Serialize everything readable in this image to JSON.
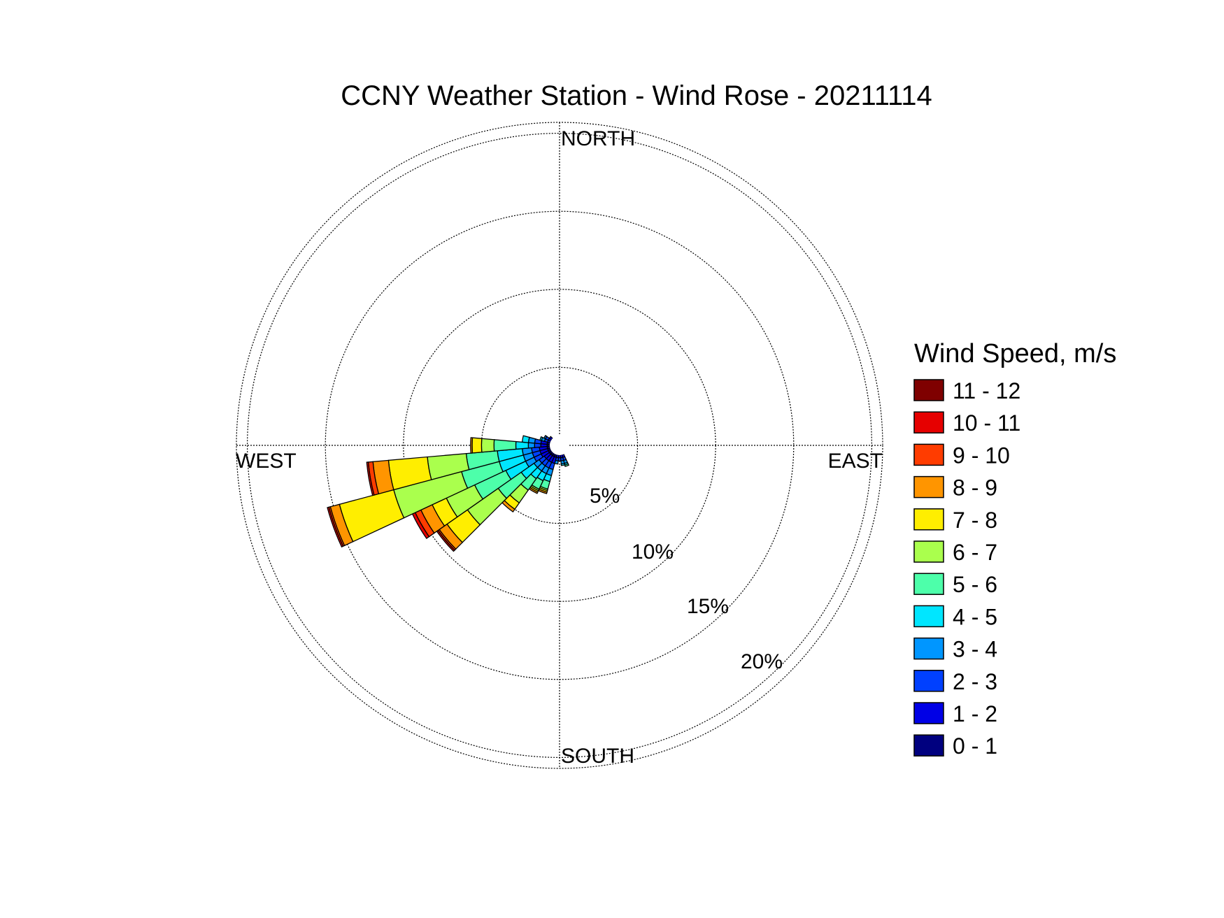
{
  "chart_data": {
    "type": "wind-rose",
    "title": "CCNY Weather Station - Wind Rose - 20211114",
    "directions": {
      "north": "NORTH",
      "south": "SOUTH",
      "east": "EAST",
      "west": "WEST"
    },
    "ring_labels": [
      "5%",
      "10%",
      "15%",
      "20%"
    ],
    "ring_values": [
      5,
      10,
      15,
      20
    ],
    "rmax": 20.7,
    "legend_title": "Wind Speed, m/s",
    "bins": [
      {
        "label": "0 - 1",
        "color": "#00007f"
      },
      {
        "label": "1 - 2",
        "color": "#0000e6"
      },
      {
        "label": "2 - 3",
        "color": "#0040ff"
      },
      {
        "label": "3 - 4",
        "color": "#0096ff"
      },
      {
        "label": "4 - 5",
        "color": "#00e6ff"
      },
      {
        "label": "5 - 6",
        "color": "#4dffaa"
      },
      {
        "label": "6 - 7",
        "color": "#aaff4d"
      },
      {
        "label": "7 - 8",
        "color": "#ffee00"
      },
      {
        "label": "8 - 9",
        "color": "#ff9500"
      },
      {
        "label": "9 - 10",
        "color": "#ff3c00"
      },
      {
        "label": "10 - 11",
        "color": "#e60000"
      },
      {
        "label": "11 - 12",
        "color": "#7f0000"
      }
    ],
    "sector_width_deg": 10,
    "sectors": [
      {
        "dir": 160,
        "cum": [
          0.6,
          0.8,
          1.0,
          1.2,
          1.3,
          1.4
        ]
      },
      {
        "dir": 170,
        "cum": [
          0.6,
          0.8,
          1.0,
          1.2,
          1.3
        ]
      },
      {
        "dir": 180,
        "cum": [
          0.6,
          0.8,
          1.0
        ]
      },
      {
        "dir": 190,
        "cum": [
          0.6,
          0.8,
          1.0,
          1.2
        ]
      },
      {
        "dir": 200,
        "cum": [
          0.8,
          1.2,
          1.6,
          2.0,
          2.4,
          2.9,
          3.0,
          3.1,
          3.2
        ]
      },
      {
        "dir": 210,
        "cum": [
          0.8,
          1.2,
          1.6,
          2.0,
          2.5,
          3.1,
          3.2,
          3.3,
          3.4
        ]
      },
      {
        "dir": 220,
        "cum": [
          0.8,
          1.2,
          1.6,
          2.0,
          2.6,
          3.5,
          4.5,
          5.0,
          5.2
        ]
      },
      {
        "dir": 230,
        "cum": [
          0.8,
          1.2,
          1.6,
          2.0,
          3.0,
          4.8,
          7.2,
          8.8,
          9.4,
          9.5,
          9.6
        ]
      },
      {
        "dir": 240,
        "cum": [
          0.8,
          1.3,
          1.8,
          2.4,
          3.8,
          6.0,
          8.0,
          9.0,
          9.8,
          10.2,
          10.4
        ]
      },
      {
        "dir": 250,
        "cum": [
          0.8,
          1.3,
          1.8,
          2.4,
          4.0,
          6.5,
          11.0,
          14.6,
          15.2,
          15.3,
          15.4
        ]
      },
      {
        "dir": 260,
        "cum": [
          0.8,
          1.3,
          1.8,
          2.4,
          4.0,
          6.0,
          8.5,
          11.0,
          12.0,
          12.3,
          12.4
        ]
      },
      {
        "dir": 270,
        "cum": [
          0.8,
          1.2,
          1.6,
          2.0,
          2.8,
          4.2,
          5.0,
          5.6,
          5.7
        ]
      },
      {
        "dir": 280,
        "cum": [
          0.8,
          1.2,
          1.6,
          2.0,
          2.4
        ]
      },
      {
        "dir": 290,
        "cum": [
          0.6,
          0.8,
          1.0,
          1.2,
          1.3
        ]
      },
      {
        "dir": 300,
        "cum": [
          0.6,
          0.8,
          1.0,
          1.1
        ]
      },
      {
        "dir": 310,
        "cum": [
          0.6,
          0.8
        ]
      }
    ]
  }
}
